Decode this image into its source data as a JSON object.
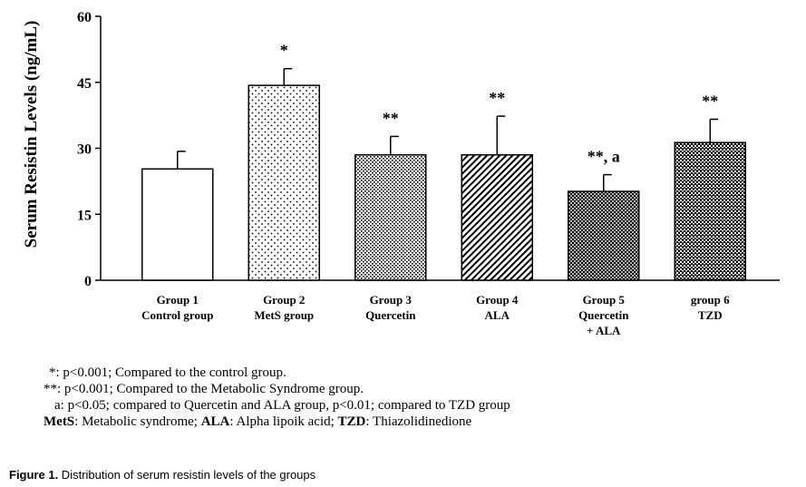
{
  "chart_data": {
    "type": "bar",
    "ylabel": "Serum Resistin Levels (ng/mL)",
    "xlabel": "",
    "ylim": [
      0,
      60
    ],
    "yticks": [
      0,
      15,
      30,
      45,
      60
    ],
    "grid": false,
    "categories": [
      {
        "line1": "Group 1",
        "line2": "Control group",
        "line3": ""
      },
      {
        "line1": "Group 2",
        "line2": "MetS group",
        "line3": ""
      },
      {
        "line1": "Group 3",
        "line2": "Quercetin",
        "line3": ""
      },
      {
        "line1": "Group 4",
        "line2": "ALA",
        "line3": ""
      },
      {
        "line1": "Group 5",
        "line2": "Quercetin",
        "line3": "+ ALA"
      },
      {
        "line1": "group 6",
        "line2": "TZD",
        "line3": ""
      }
    ],
    "values": [
      25.3,
      44.3,
      28.5,
      28.5,
      20.2,
      31.3
    ],
    "errors": [
      4.0,
      3.8,
      4.2,
      8.8,
      3.8,
      5.3
    ],
    "significance": [
      "",
      "*",
      "**",
      "**",
      "**, a",
      "**"
    ],
    "patterns": [
      "none",
      "sparse-dots",
      "dense-dots",
      "diagonal",
      "crosshatch",
      "checker"
    ]
  },
  "notes": [
    "*: p<0.001; Compared to the control group.",
    "**: p<0.001; Compared to the Metabolic Syndrome group.",
    "a: p<0.05; compared to Quercetin and ALA group, p<0.01; compared to TZD group"
  ],
  "abbrev": {
    "mets_key": "MetS",
    "mets_val": ": Metabolic syndrome;",
    "ala_key": "ALA",
    "ala_val": ": Alpha lipoik acid;",
    "tzd_key": "TZD",
    "tzd_val": ": Thiazolidinedione"
  },
  "caption": {
    "label": "Figure 1.",
    "text": " Distribution of serum resistin levels of the groups"
  }
}
